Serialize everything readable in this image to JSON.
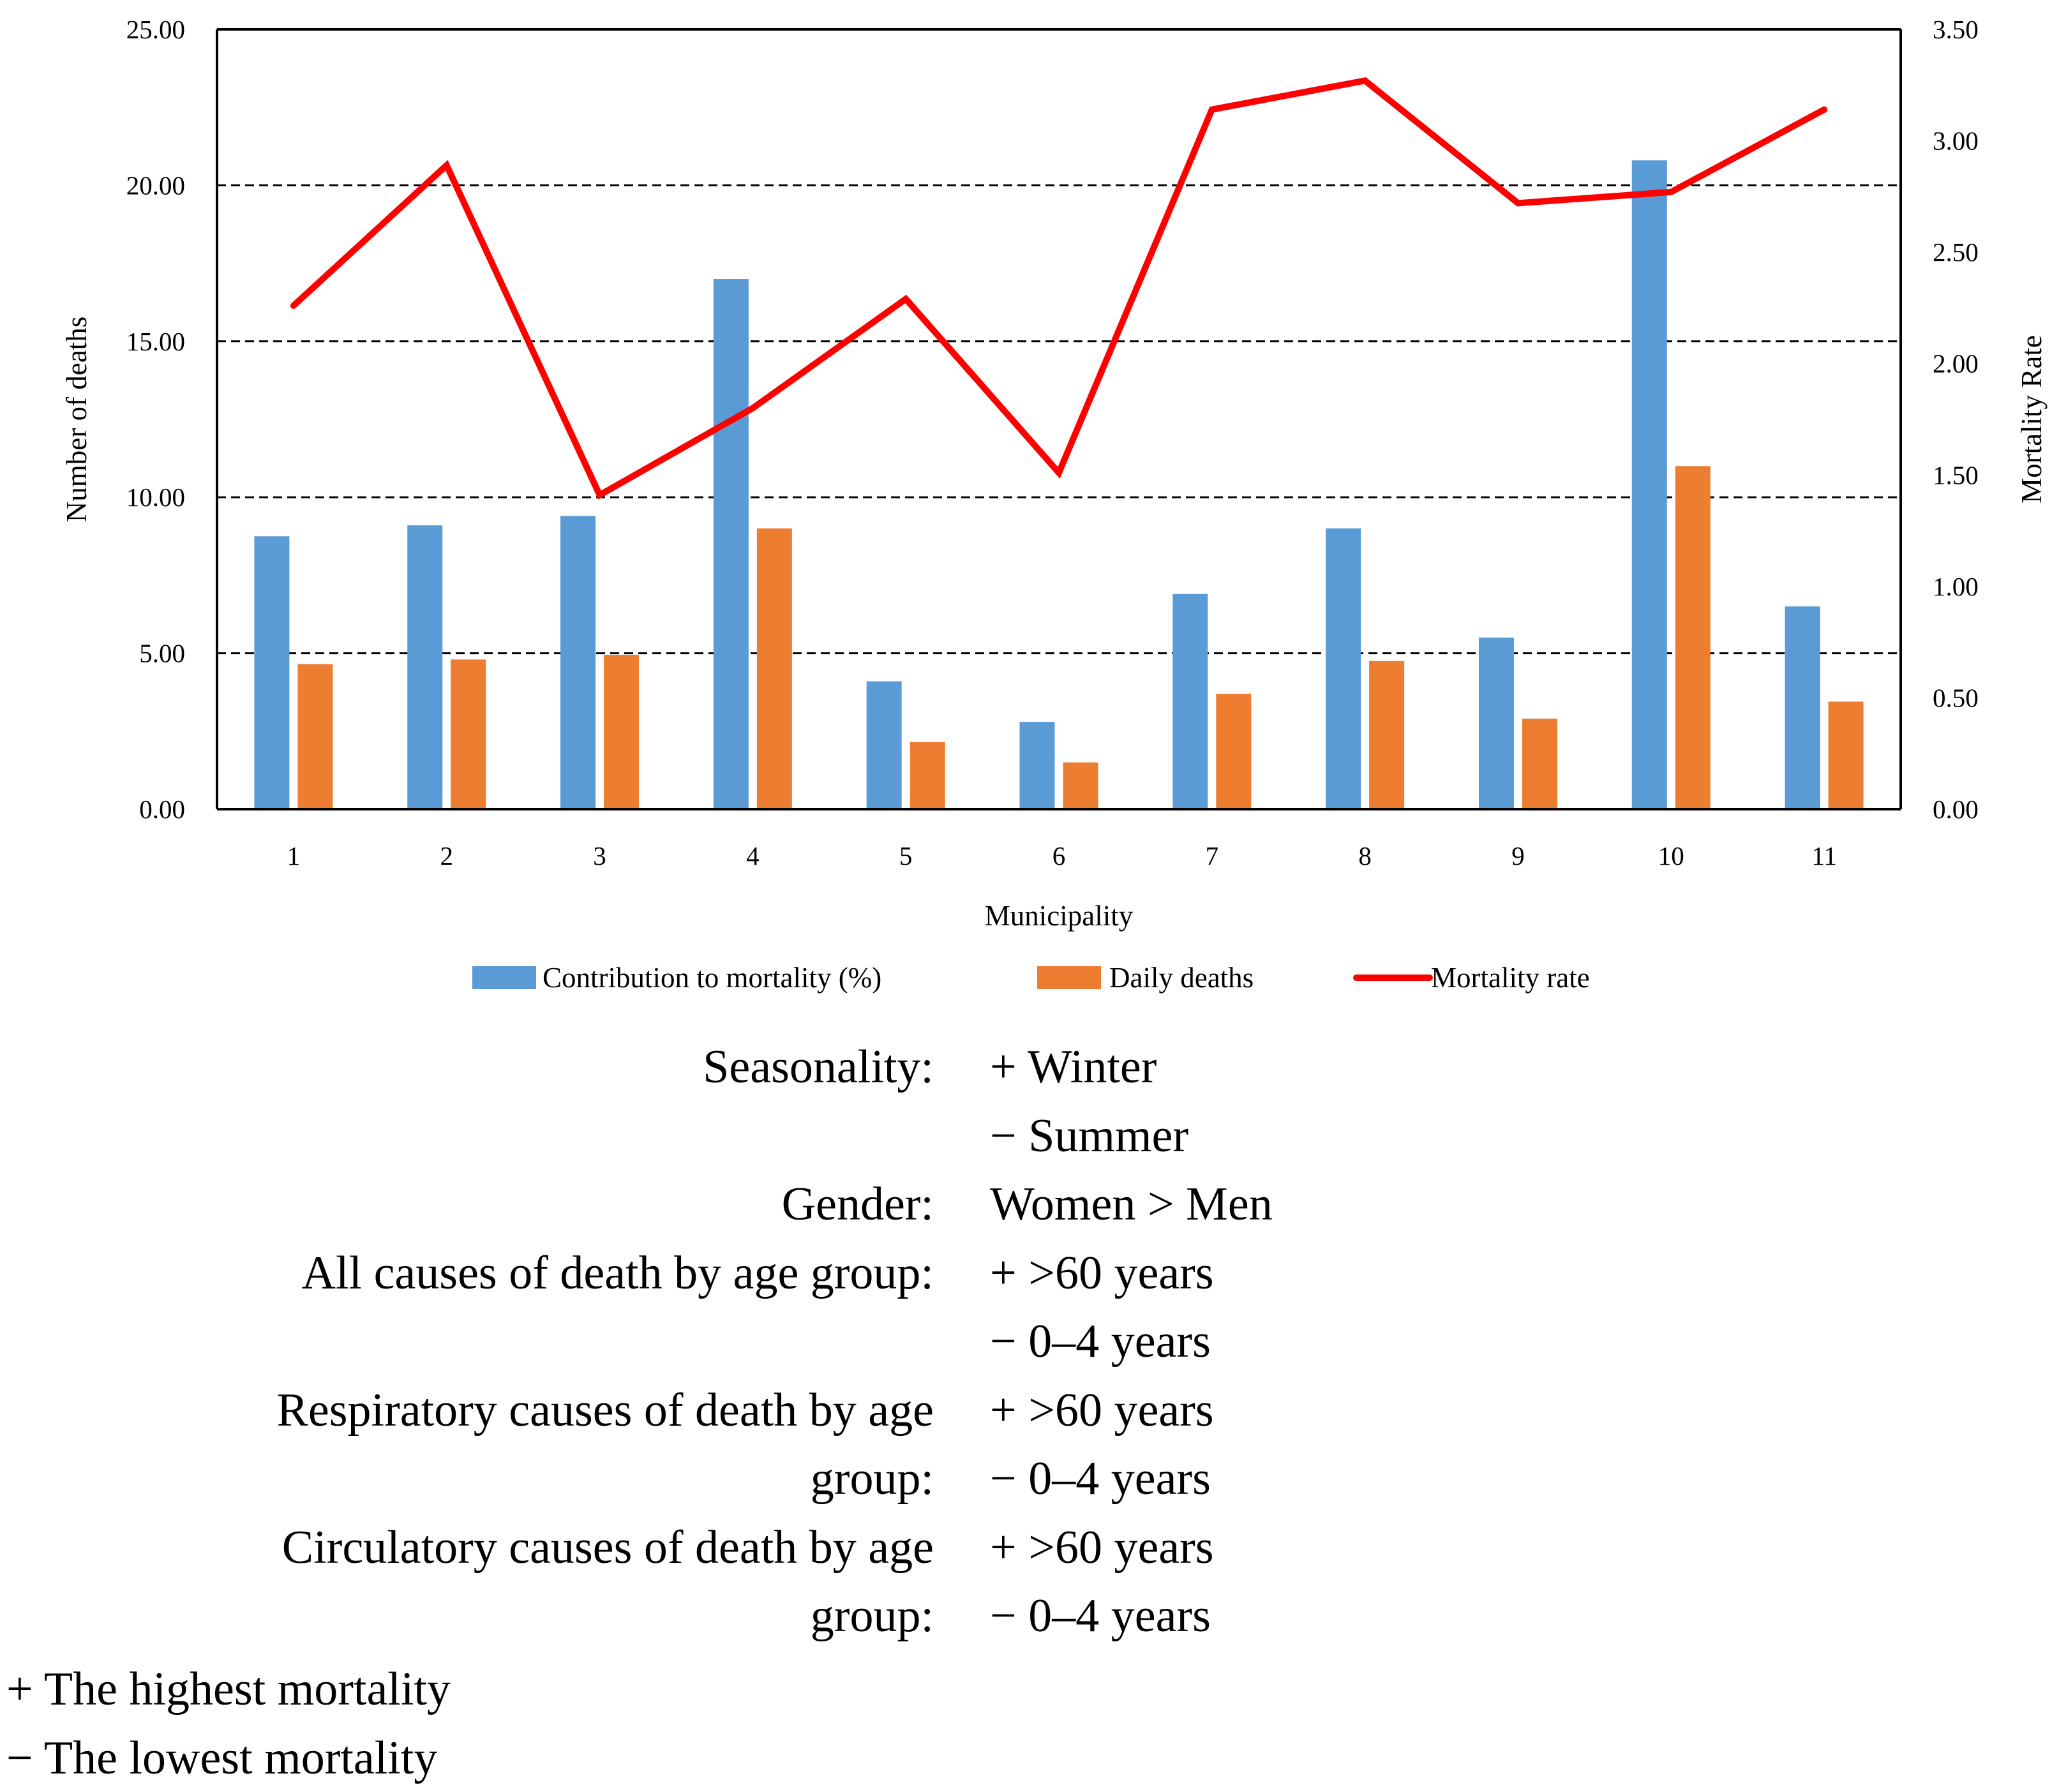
{
  "chart_data": {
    "type": "bar",
    "categories": [
      "1",
      "2",
      "3",
      "4",
      "5",
      "6",
      "7",
      "8",
      "9",
      "10",
      "11"
    ],
    "series": [
      {
        "name": "Contribution to mortality (%)",
        "type": "bar",
        "axis": "left",
        "color": "#5b9bd5",
        "values": [
          8.75,
          9.1,
          9.4,
          17.0,
          4.1,
          2.8,
          6.9,
          9.0,
          5.5,
          20.8,
          6.5
        ]
      },
      {
        "name": "Daily deaths",
        "type": "bar",
        "axis": "left",
        "color": "#ed7d31",
        "values": [
          4.65,
          4.8,
          4.95,
          9.0,
          2.15,
          1.5,
          3.7,
          4.75,
          2.9,
          11.0,
          3.45
        ]
      },
      {
        "name": "Mortality rate",
        "type": "line",
        "axis": "right",
        "color": "#ff0000",
        "values": [
          2.26,
          2.89,
          1.41,
          1.8,
          2.29,
          1.51,
          3.14,
          3.27,
          2.72,
          2.77,
          3.14
        ]
      }
    ],
    "xlabel": "Municipality",
    "ylabel": "Number of deaths",
    "y2label": "Mortality Rate",
    "ylim": [
      0,
      25
    ],
    "y2lim": [
      0,
      3.5
    ],
    "yticks": [
      "0.00",
      "5.00",
      "10.00",
      "15.00",
      "20.00",
      "25.00"
    ],
    "y2ticks": [
      "0.00",
      "0.50",
      "1.00",
      "1.50",
      "2.00",
      "2.50",
      "3.00",
      "3.50"
    ],
    "grid": "dashed horizontal at 5.00–20.00",
    "legend_position": "bottom"
  },
  "summary": {
    "rows": [
      {
        "label": "Seasonality:",
        "value": "+ Winter"
      },
      {
        "label": "",
        "value": "− Summer"
      },
      {
        "label": "Gender:",
        "value": "Women > Men"
      },
      {
        "label": "All causes of death by age group:",
        "value": "+ >60 years"
      },
      {
        "label": "",
        "value": "− 0–4 years"
      },
      {
        "label": "Respiratory causes of death by age",
        "value": "+ >60 years"
      },
      {
        "label": "group:",
        "value": "− 0–4 years"
      },
      {
        "label": "Circulatory causes of death by age",
        "value": "+ >60 years"
      },
      {
        "label": "group:",
        "value": "− 0–4 years"
      }
    ],
    "footnotes": [
      "+ The highest mortality",
      "− The lowest mortality"
    ]
  }
}
